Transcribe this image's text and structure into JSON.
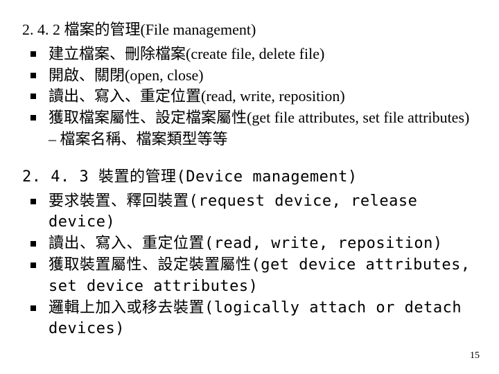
{
  "section1": {
    "heading": "2. 4. 2 檔案的管理(File management)",
    "items": [
      "建立檔案、刪除檔案(create file, delete file)",
      "開啟、關閉(open, close)",
      "讀出、寫入、重定位置(read, write, reposition)",
      "獲取檔案屬性、設定檔案屬性(get file attributes, set file attributes) – 檔案名稱、檔案類型等等"
    ]
  },
  "section2": {
    "heading": "2. 4. 3 裝置的管理(Device management)",
    "items": [
      "要求裝置、釋回裝置(request device, release device)",
      "讀出、寫入、重定位置(read, write, reposition)",
      "獲取裝置屬性、設定裝置屬性(get device attributes, set device attributes)",
      "邏輯上加入或移去裝置(logically attach or detach devices)"
    ]
  },
  "page_number": "15",
  "bullet_color": "#000000",
  "text_color": "#000000",
  "background_color": "#ffffff",
  "fontsize_body": 22,
  "fontsize_pagenum": 14
}
